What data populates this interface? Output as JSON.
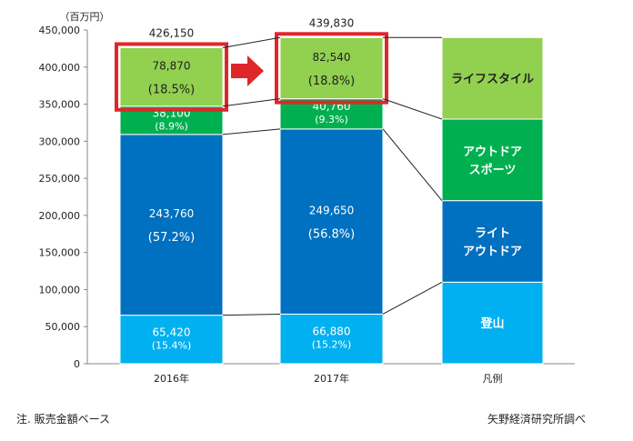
{
  "chart_data": {
    "type": "bar",
    "stacked": true,
    "unit_label": "（百万円）",
    "categories": [
      "2016年",
      "2017年"
    ],
    "legend_category": "凡例",
    "ylim": [
      0,
      450000
    ],
    "yticks": [
      0,
      50000,
      100000,
      150000,
      200000,
      250000,
      300000,
      350000,
      400000,
      450000
    ],
    "ytick_labels": [
      "0",
      "50,000",
      "100,000",
      "150,000",
      "200,000",
      "250,000",
      "300,000",
      "350,000",
      "400,000",
      "450,000"
    ],
    "totals": [
      426150,
      439830
    ],
    "total_labels": [
      "426,150",
      "439,830"
    ],
    "series": [
      {
        "name": "登山",
        "color": "#00b0f0",
        "values": [
          65420,
          66880
        ],
        "value_labels": [
          "65,420",
          "66,880"
        ],
        "share_labels": [
          "(15.4%)",
          "(15.2%)"
        ]
      },
      {
        "name": "ライト\nアウトドア",
        "color": "#0070c0",
        "values": [
          243760,
          249650
        ],
        "value_labels": [
          "243,760",
          "249,650"
        ],
        "share_labels": [
          "(57.2%)",
          "(56.8%)"
        ]
      },
      {
        "name": "アウトドア\nスポーツ",
        "color": "#00b050",
        "values": [
          38100,
          40760
        ],
        "value_labels": [
          "38,100",
          "40,760"
        ],
        "share_labels": [
          "(8.9%)",
          "(9.3%)"
        ]
      },
      {
        "name": "ライフスタイル",
        "color": "#92d050",
        "values": [
          78870,
          82540
        ],
        "value_labels": [
          "78,870",
          "82,540"
        ],
        "share_labels": [
          "(18.5%)",
          "(18.8%)"
        ]
      }
    ],
    "highlight_series": "ライフスタイル",
    "highlight_color": "#e0262b",
    "grid": false,
    "legend": "right-column"
  },
  "footnote_left": "注. 販売金額ベース",
  "footnote_right": "矢野経済研究所調べ"
}
